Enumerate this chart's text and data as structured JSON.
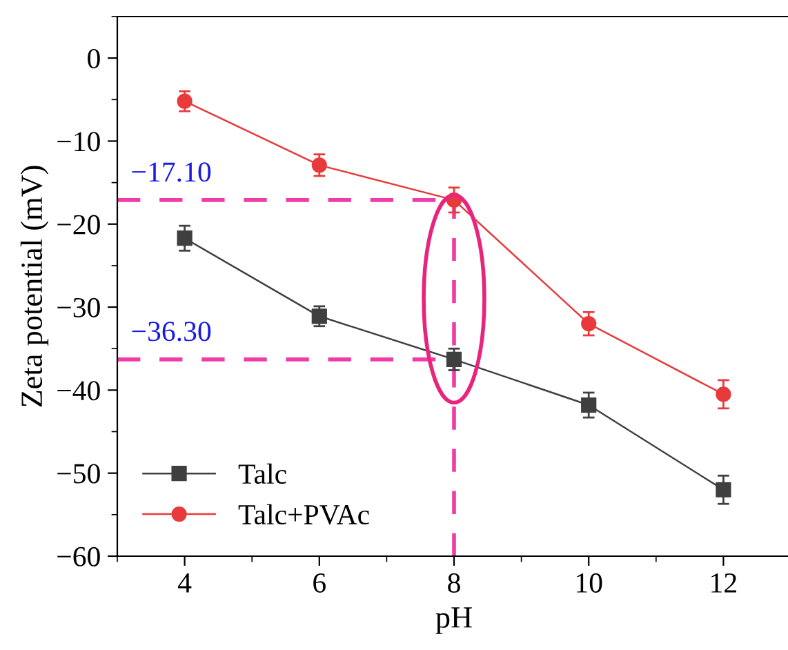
{
  "chart_data": {
    "type": "line",
    "xlabel": "pH",
    "ylabel": "Zeta potential (mV)",
    "x": [
      4,
      6,
      8,
      10,
      12
    ],
    "series": [
      {
        "name": "Talc",
        "color": "#3f3f3f",
        "marker": "square",
        "values": [
          -21.7,
          -31.1,
          -36.3,
          -41.8,
          -52.0
        ],
        "errors": [
          1.5,
          1.2,
          1.3,
          1.5,
          1.7
        ]
      },
      {
        "name": "Talc+PVAc",
        "color": "#e83a3a",
        "marker": "circle",
        "values": [
          -5.2,
          -12.9,
          -17.1,
          -32.0,
          -40.5
        ],
        "errors": [
          1.2,
          1.3,
          1.5,
          1.4,
          1.7
        ]
      }
    ],
    "xlim": [
      3,
      13
    ],
    "xticks": [
      4,
      6,
      8,
      10,
      12
    ],
    "ylim": [
      -60,
      5
    ],
    "yticks": [
      -60,
      -50,
      -40,
      -30,
      -20,
      -10,
      0
    ],
    "ref_lines": [
      {
        "axis": "y",
        "value": -17.1,
        "label": "−17.10",
        "color": "#f03ca8",
        "line_style": "dashed"
      },
      {
        "axis": "y",
        "value": -36.3,
        "label": "−36.30",
        "color": "#f03ca8",
        "line_style": "dashed"
      },
      {
        "axis": "x",
        "value": 8,
        "color": "#f03ca8",
        "line_style": "dashed"
      }
    ],
    "grid": false,
    "legend": "bottom left",
    "line_style": "solid"
  }
}
